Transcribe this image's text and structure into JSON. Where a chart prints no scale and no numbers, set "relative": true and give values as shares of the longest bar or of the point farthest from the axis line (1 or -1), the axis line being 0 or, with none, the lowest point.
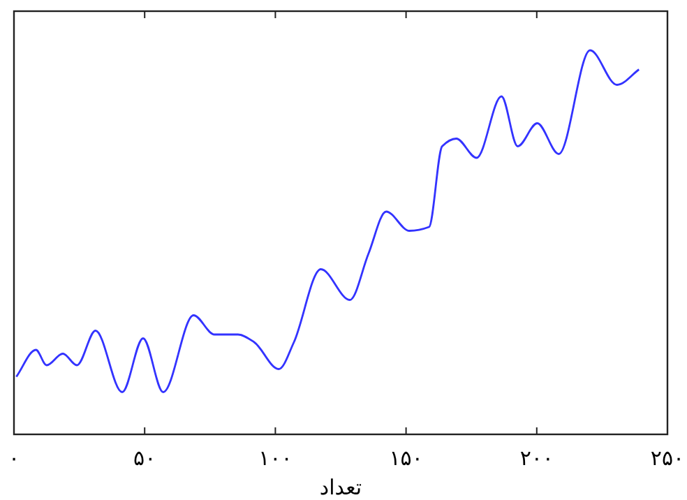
{
  "chart_data": {
    "type": "line",
    "relative": true,
    "xlabel": "تعداد",
    "xlim": [
      0,
      250
    ],
    "xticks": [
      {
        "value": 0,
        "label": "۰"
      },
      {
        "value": 50,
        "label": "۵۰"
      },
      {
        "value": 100,
        "label": "۱۰۰"
      },
      {
        "value": 150,
        "label": "۱۵۰"
      },
      {
        "value": 200,
        "label": "۲۰۰"
      },
      {
        "value": 250,
        "label": "۲۵۰"
      }
    ],
    "grid": false,
    "marker": "none",
    "line_style": "solid",
    "series": [
      {
        "color": "#3333ff",
        "x": [
          0.9,
          8.4,
          12.5,
          18.7,
          24.1,
          31.2,
          41.4,
          49.4,
          57.1,
          68.7,
          76.7,
          85.7,
          91.9,
          101.3,
          107.1,
          117.4,
          128.5,
          135.6,
          142.4,
          151.3,
          158.8,
          163.8,
          169.2,
          177,
          186.5,
          192.7,
          200.2,
          208.4,
          220.4,
          230.7,
          239.1
        ],
        "values": [
          0.15,
          0.22,
          0.18,
          0.21,
          0.18,
          0.27,
          0.11,
          0.25,
          0.11,
          0.31,
          0.26,
          0.26,
          0.24,
          0.17,
          0.24,
          0.43,
          0.35,
          0.47,
          0.58,
          0.53,
          0.54,
          0.75,
          0.77,
          0.72,
          0.88,
          0.75,
          0.81,
          0.73,
          1,
          0.91,
          0.95
        ]
      }
    ]
  }
}
